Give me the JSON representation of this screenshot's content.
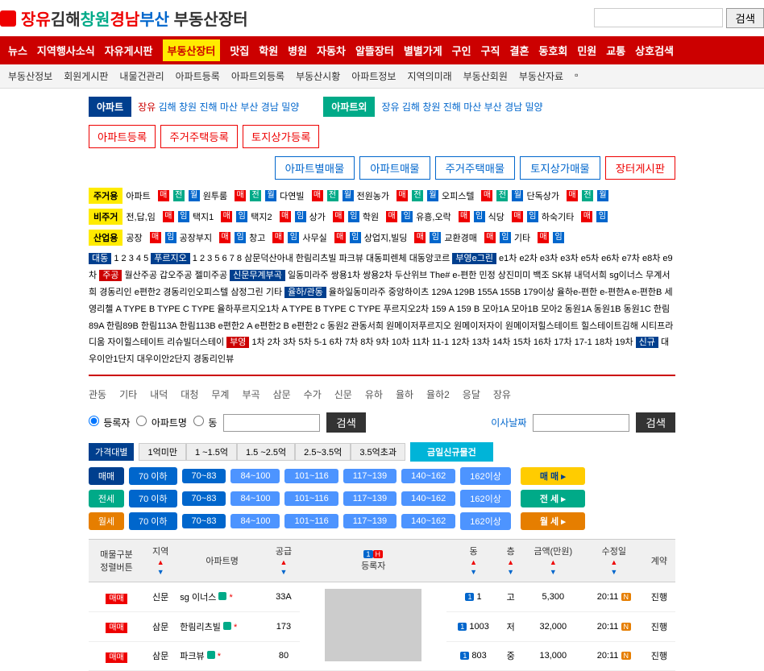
{
  "header": {
    "logo": {
      "p1": "장유",
      "p2": "김해",
      "p3": "창원",
      "p4": "경남",
      "p5": "부산",
      "p6": " 부동산장터"
    },
    "searchBtn": "검색"
  },
  "navRed": [
    "뉴스",
    "지역행사소식",
    "자유게시판",
    "부동산장터",
    "맛집",
    "학원",
    "병원",
    "자동차",
    "알뜰장터",
    "별별가게",
    "구인",
    "구직",
    "결혼",
    "동호회",
    "민원",
    "교통",
    "상호검색"
  ],
  "navRedHighlightIdx": 3,
  "navSub": [
    "부동산정보",
    "회원게시판",
    "내물건관리",
    "아파트등록",
    "아파트외등록",
    "부동산시황",
    "아파트정보",
    "지역의미래",
    "부동산회원",
    "부동산자료"
  ],
  "tabApt": {
    "label": "아파트",
    "items": [
      "장유",
      "김해",
      "창원",
      "진해",
      "마산",
      "부산",
      "경남",
      "밀양"
    ],
    "selIdx": 0
  },
  "tabAptEx": {
    "label": "아파트외",
    "items": [
      "장유",
      "김해",
      "창원",
      "진해",
      "마산",
      "부산",
      "경남",
      "밀양"
    ]
  },
  "regBtns": [
    "아파트등록",
    "주거주택등록",
    "토지상가등록"
  ],
  "actionBtns": [
    "아파트별매물",
    "아파트매물",
    "주거주택매물",
    "토지상가매물",
    "장터게시판"
  ],
  "cat1": {
    "label": "주거용",
    "items": [
      "아파트",
      "원투룸",
      "다연빌",
      "전원농가",
      "오피스텔",
      "단독상가"
    ]
  },
  "cat2": {
    "label": "비주거",
    "items": [
      "전,답,임",
      "택지1",
      "택지2",
      "상가",
      "학원",
      "유흥,오락",
      "식당",
      "하숙기타"
    ]
  },
  "cat3": {
    "label": "산업용",
    "items": [
      "공장",
      "공장부지",
      "창고",
      "사무실",
      "상업지,빌딩",
      "교환경매",
      "기타"
    ]
  },
  "aptText": "대동  1  2  3  4  5  푸르지오  1  2  3  5  6  7  8  삼문덕산아내  한림리츠빌  파크뷰  대동피렌체  대동앙코르  부영e그린  e1차  e2차  e3차  e3차  e5차  e6차  e7차  e8차  e9차  주공  월산주공  갑오주공  젤미주공  신문무계부곡  일동미라주  쌍용1차  쌍용2차  두산위브  The#  e-편한  민정  상진미미  백조  SK뷰  내덕서희  sg이너스  무계서희  경동리인  e편한2  경동리인오피스텔  삼정그린  기타  율하/관동  율하일동미라주  중앙하이츠  129A  129B  155A  155B  179이상  율하e-편한  e-편한A  e-편한B  세영리첼  A TYPE  B TYPE  C TYPE  율하푸르지오1차  A TYPE  B TYPE  C TYPE  푸르지오2차  159 A  159 B  모아1A  모아1B  모아2  동원1A  동원1B  동원1C  한림89A  한림89B  한림113A  한림113B  e편한2 A  e편한2 B  e편한2 c  동원2  관동서희  원메이저푸르지오  원메이저자이  원메이저힐스테이트  힐스테이트김해  시티프라디움  자이힐스테이트  리슈빌더스테이  부영  1차  2차  3차  5차  5-1  6차  7차  8차  9차  10차  11차  11-1  12차  13차  14차  15차  16차  17차  17-1  18차  19차  신규  대우이안1단지  대우이안2단지  경동리인뷰",
  "localTabs": [
    "관동",
    "기타",
    "내덕",
    "대청",
    "무계",
    "부곡",
    "삼문",
    "수가",
    "신문",
    "유하",
    "율하",
    "율하2",
    "응달",
    "장유"
  ],
  "filter": {
    "r1": "등록자",
    "r2": "아파트명",
    "r3": "동",
    "search": "검색",
    "date": "이사날짜"
  },
  "priceRow": {
    "label": "가격대별",
    "btns": [
      "1억미만",
      "1 ~1.5억",
      "1.5 ~2.5억",
      "2.5~3.5억",
      "3.5억초과"
    ],
    "new": "금일신규물건"
  },
  "sizeRows": [
    {
      "label": "매매",
      "btns": [
        "70 이하",
        "70~83",
        "84~100",
        "101~116",
        "117~139",
        "140~162",
        "162이상"
      ],
      "end": "매 매"
    },
    {
      "label": "전세",
      "btns": [
        "70 이하",
        "70~83",
        "84~100",
        "101~116",
        "117~139",
        "140~162",
        "162이상"
      ],
      "end": "전 세"
    },
    {
      "label": "월세",
      "btns": [
        "70 이하",
        "70~83",
        "84~100",
        "101~116",
        "117~139",
        "140~162",
        "162이상"
      ],
      "end": "월 세"
    }
  ],
  "tableHead": [
    "매물구분\n정렬버튼",
    "지역",
    "아파트명",
    "공급",
    "등록자",
    "동",
    "층",
    "금액(만원)",
    "수정일",
    "계약"
  ],
  "rows": [
    {
      "type": "매매",
      "area": "신문",
      "name": "sg 이너스",
      "sup": "33A",
      "dong": "1",
      "floor": "고",
      "price": "5,300",
      "date": "20:11",
      "status": "진행"
    },
    {
      "type": "매매",
      "area": "삼문",
      "name": "한림리츠빌",
      "sup": "173",
      "dong": "1003",
      "floor": "저",
      "price": "32,000",
      "date": "20:11",
      "status": "진행"
    },
    {
      "type": "매매",
      "area": "삼문",
      "name": "파크뷰",
      "sup": "80",
      "dong": "803",
      "floor": "중",
      "price": "13,000",
      "date": "20:11",
      "status": "진행"
    }
  ]
}
